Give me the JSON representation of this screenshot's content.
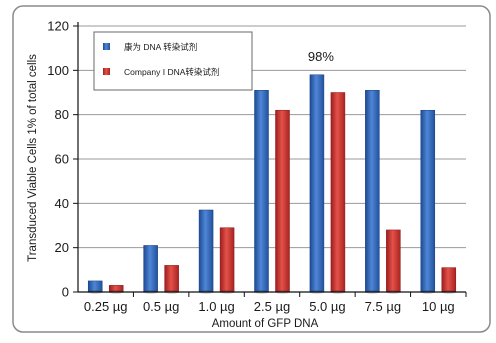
{
  "chart_data": {
    "type": "bar",
    "categories": [
      "0.25 µg",
      "0.5 µg",
      "1.0 µg",
      "2.5 µg",
      "5.0 µg",
      "7.5 µg",
      "10 µg"
    ],
    "series": [
      {
        "name": "康为 DNA 转染试剂",
        "values": [
          5,
          21,
          37,
          91,
          98,
          91,
          82
        ]
      },
      {
        "name": "Company I DNA转染试剂",
        "values": [
          3,
          12,
          29,
          82,
          90,
          28,
          11
        ]
      }
    ],
    "xlabel": "Amount of GFP DNA",
    "ylabel": "Transduced Viable Cells 1% of total cells",
    "ylim": [
      0,
      120
    ],
    "yticks": [
      "0",
      "20",
      "40",
      "60",
      "80",
      "100",
      "120"
    ],
    "grid": true,
    "legend_position": "top-left",
    "annotations": [
      {
        "text": "98%",
        "category_index": 4,
        "series_index": 0
      }
    ],
    "colors": {
      "series_1": "#2f63b5",
      "series_2": "#c9302c",
      "grid": "#9a9a9a",
      "axis": "#111111",
      "frame": "#8a8a8a"
    }
  }
}
